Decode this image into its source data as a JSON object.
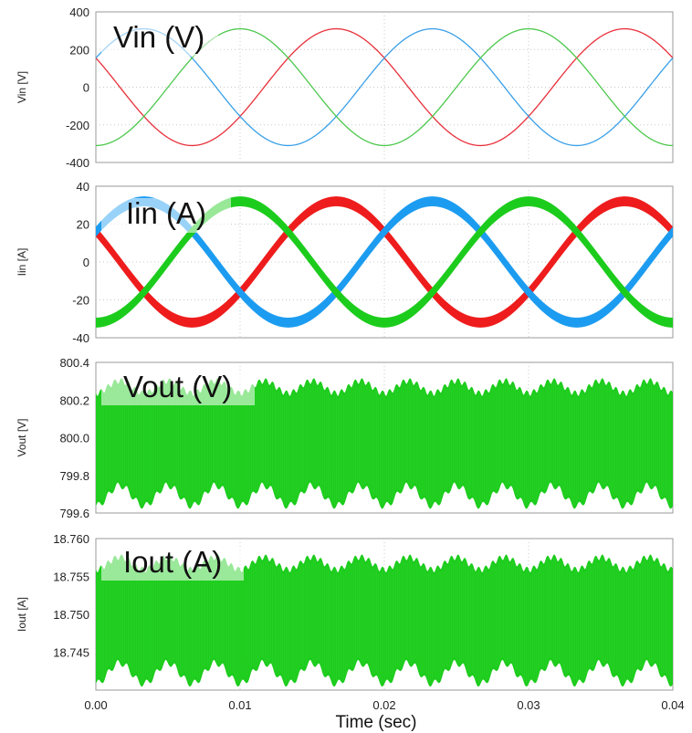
{
  "chart_data": [
    {
      "type": "line",
      "title": "Vin (V)",
      "ylabel": "Vin [V]",
      "ylim": [
        -400,
        400
      ],
      "yticks": [
        "400",
        "200",
        "0",
        "-200",
        "-400"
      ],
      "grid": true,
      "series": [
        {
          "color": "#e8303a",
          "amplitude": 310,
          "frequency_hz": 50,
          "phase_deg": 60
        },
        {
          "color": "#3aa0e8",
          "amplitude": 310,
          "frequency_hz": 50,
          "phase_deg": -60
        },
        {
          "color": "#4cc84c",
          "amplitude": 310,
          "frequency_hz": 50,
          "phase_deg": 180
        }
      ]
    },
    {
      "type": "line",
      "title": "Iin (A)",
      "ylabel": "Iin [A]",
      "ylim": [
        -40,
        40
      ],
      "yticks": [
        "40",
        "20",
        "0",
        "-20",
        "-40"
      ],
      "grid": true,
      "ripple_band": 5,
      "series": [
        {
          "color": "#ee1c1c",
          "amplitude": 32,
          "frequency_hz": 50,
          "phase_deg": 60
        },
        {
          "color": "#1c9cf0",
          "amplitude": 32,
          "frequency_hz": 50,
          "phase_deg": -60
        },
        {
          "color": "#1ccc1c",
          "amplitude": 32,
          "frequency_hz": 50,
          "phase_deg": 180
        }
      ]
    },
    {
      "type": "line",
      "title": "Vout (V)",
      "ylabel": "Vout [V]",
      "ylim": [
        799.6,
        800.4
      ],
      "yticks": [
        "800.4",
        "800.2",
        "800.0",
        "799.8",
        "799.6"
      ],
      "grid": true,
      "series": [
        {
          "color": "#1ccc1c",
          "mean": 800.0,
          "ripple_min": 799.64,
          "ripple_max": 800.3,
          "ripple_frequency_hz": 300
        }
      ]
    },
    {
      "type": "line",
      "title": "Iout (A)",
      "ylabel": "Iout [A]",
      "ylim": [
        18.74,
        18.76
      ],
      "yticks": [
        "18.760",
        "18.755",
        "18.750",
        "18.745"
      ],
      "grid": true,
      "series": [
        {
          "color": "#1ccc1c",
          "mean": 18.75,
          "ripple_min": 18.7409,
          "ripple_max": 18.7575,
          "ripple_frequency_hz": 300
        }
      ]
    }
  ],
  "x_axis": {
    "label": "Time (sec)",
    "xlim": [
      0,
      0.04
    ],
    "ticks": [
      "0.00",
      "0.01",
      "0.02",
      "0.03",
      "0.04"
    ]
  }
}
